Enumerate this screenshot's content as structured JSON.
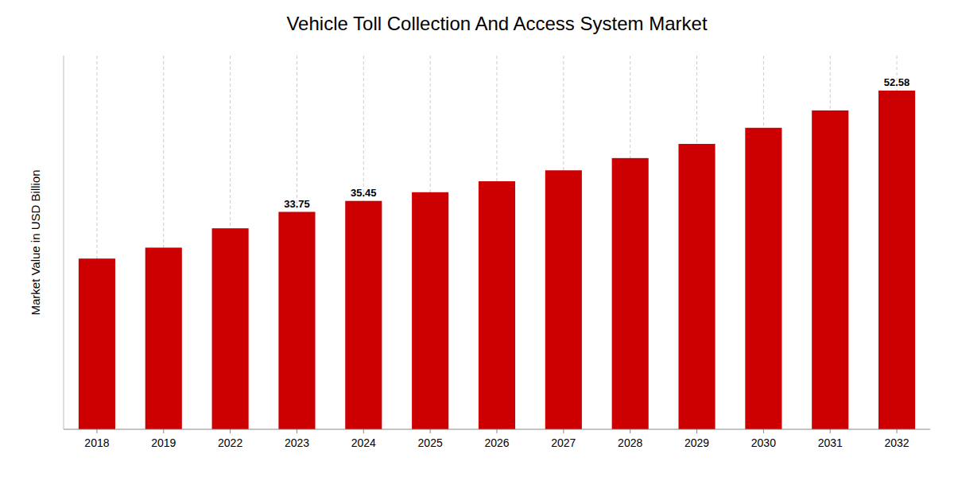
{
  "chart_data": {
    "type": "bar",
    "title": "Vehicle Toll Collection And Access System Market",
    "ylabel": "Market Value in USD Billion",
    "categories": [
      "2018",
      "2019",
      "2022",
      "2023",
      "2024",
      "2025",
      "2026",
      "2027",
      "2028",
      "2029",
      "2030",
      "2031",
      "2032"
    ],
    "values": [
      26.5,
      28.2,
      31.2,
      33.75,
      35.45,
      36.8,
      38.5,
      40.2,
      42.1,
      44.3,
      46.8,
      49.5,
      52.58
    ],
    "value_labels": [
      null,
      null,
      null,
      "33.75",
      "35.45",
      null,
      null,
      null,
      null,
      null,
      null,
      null,
      "52.58"
    ],
    "color": "#CC0000",
    "ylim": [
      0,
      58
    ],
    "grid": true,
    "tick_labels": "x"
  }
}
